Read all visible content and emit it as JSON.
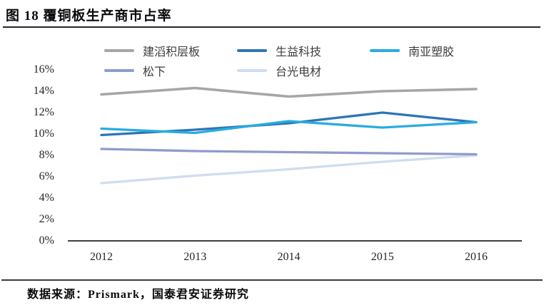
{
  "figure": {
    "title": "图 18 覆铜板生产商市占率",
    "source": "数据来源：Prismark，国泰君安证券研究"
  },
  "chart_data": {
    "type": "line",
    "title": "覆铜板生产商市占率",
    "categories": [
      "2012",
      "2013",
      "2014",
      "2015",
      "2016"
    ],
    "series": [
      {
        "name": "建滔积层板",
        "color": "#A6A6A6",
        "values": [
          13.7,
          14.3,
          13.5,
          14.0,
          14.2
        ]
      },
      {
        "name": "生益科技",
        "color": "#2E75B6",
        "values": [
          9.9,
          10.4,
          11.0,
          12.0,
          11.1
        ]
      },
      {
        "name": "南亚塑胶",
        "color": "#29ABE2",
        "values": [
          10.5,
          10.1,
          11.2,
          10.6,
          11.1
        ]
      },
      {
        "name": "松下",
        "color": "#8E9CCB",
        "values": [
          8.6,
          8.4,
          8.3,
          8.2,
          8.1
        ]
      },
      {
        "name": "台光电材",
        "color": "#CFDDEF",
        "values": [
          5.4,
          6.1,
          6.7,
          7.4,
          8.0
        ]
      }
    ],
    "xlabel": "",
    "ylabel": "",
    "ylim": [
      0,
      16
    ],
    "y_tick_step": 2,
    "y_ticks": [
      "0%",
      "2%",
      "4%",
      "6%",
      "8%",
      "10%",
      "12%",
      "14%",
      "16%"
    ],
    "grid": false,
    "legend_position": "top",
    "axis_color": "#3f3f3f"
  }
}
